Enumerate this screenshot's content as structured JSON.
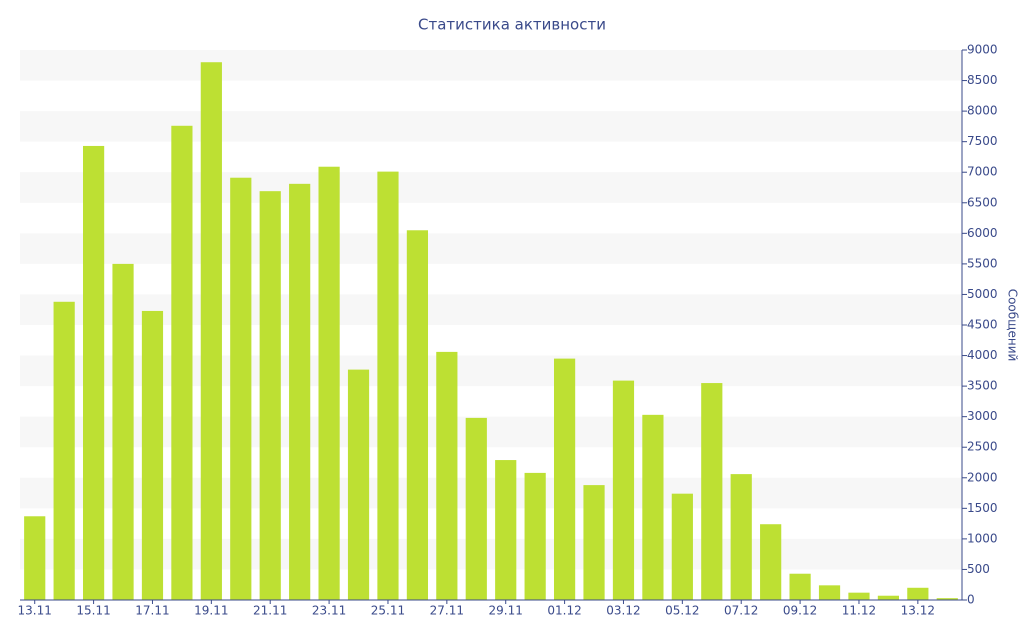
{
  "chart_data": {
    "type": "bar",
    "title": "Статистика активности",
    "y_label": "Сообщений",
    "categories": [
      "13.11",
      null,
      "15.11",
      null,
      "17.11",
      null,
      "19.11",
      null,
      "21.11",
      null,
      "23.11",
      null,
      "25.11",
      null,
      "27.11",
      null,
      "29.11",
      null,
      "01.12",
      null,
      "03.12",
      null,
      "05.12",
      null,
      "07.12",
      null,
      "09.12",
      null,
      "11.12",
      null,
      "13.12",
      null
    ],
    "values": [
      1370,
      4880,
      7430,
      5500,
      4730,
      7760,
      8800,
      6910,
      6690,
      6810,
      7090,
      3770,
      7010,
      6050,
      4060,
      2980,
      2290,
      2080,
      3950,
      1880,
      3590,
      3030,
      1740,
      3550,
      2060,
      1240,
      430,
      240,
      120,
      70,
      200,
      30
    ],
    "color": "#bde033",
    "y_axis_side": "right",
    "ylim": [
      0,
      9000
    ],
    "yticks": [
      0,
      500,
      1000,
      1500,
      2000,
      2500,
      3000,
      3500,
      4000,
      4500,
      5000,
      5500,
      6000,
      6500,
      7000,
      7500,
      8000,
      8500,
      9000
    ],
    "grid": true
  }
}
